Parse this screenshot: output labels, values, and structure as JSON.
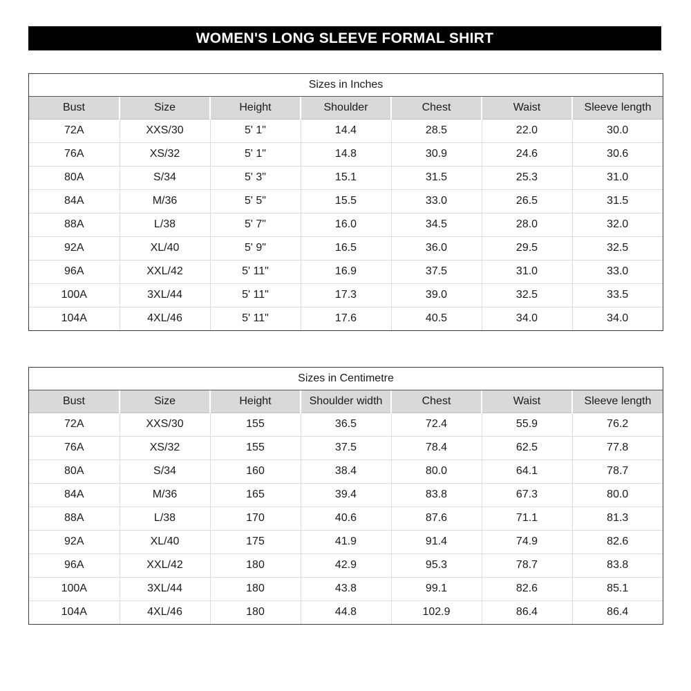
{
  "page_title": "WOMEN'S LONG SLEEVE FORMAL SHIRT",
  "colors": {
    "title_bar_bg": "#000000",
    "title_bar_text": "#ffffff",
    "header_row_bg": "#d9d9d9",
    "table_border": "#3a3a3a",
    "row_divider": "#dcdcdc"
  },
  "tables": [
    {
      "title": "Sizes in Inches",
      "columns": [
        "Bust",
        "Size",
        "Height",
        "Shoulder",
        "Chest",
        "Waist",
        "Sleeve length"
      ],
      "rows": [
        [
          "72A",
          "XXS/30",
          "5' 1\"",
          "14.4",
          "28.5",
          "22.0",
          "30.0"
        ],
        [
          "76A",
          "XS/32",
          "5' 1\"",
          "14.8",
          "30.9",
          "24.6",
          "30.6"
        ],
        [
          "80A",
          "S/34",
          "5' 3\"",
          "15.1",
          "31.5",
          "25.3",
          "31.0"
        ],
        [
          "84A",
          "M/36",
          "5' 5\"",
          "15.5",
          "33.0",
          "26.5",
          "31.5"
        ],
        [
          "88A",
          "L/38",
          "5' 7\"",
          "16.0",
          "34.5",
          "28.0",
          "32.0"
        ],
        [
          "92A",
          "XL/40",
          "5' 9\"",
          "16.5",
          "36.0",
          "29.5",
          "32.5"
        ],
        [
          "96A",
          "XXL/42",
          "5' 11\"",
          "16.9",
          "37.5",
          "31.0",
          "33.0"
        ],
        [
          "100A",
          "3XL/44",
          "5' 11\"",
          "17.3",
          "39.0",
          "32.5",
          "33.5"
        ],
        [
          "104A",
          "4XL/46",
          "5' 11\"",
          "17.6",
          "40.5",
          "34.0",
          "34.0"
        ]
      ]
    },
    {
      "title": "Sizes in Centimetre",
      "columns": [
        "Bust",
        "Size",
        "Height",
        "Shoulder width",
        "Chest",
        "Waist",
        "Sleeve length"
      ],
      "rows": [
        [
          "72A",
          "XXS/30",
          "155",
          "36.5",
          "72.4",
          "55.9",
          "76.2"
        ],
        [
          "76A",
          "XS/32",
          "155",
          "37.5",
          "78.4",
          "62.5",
          "77.8"
        ],
        [
          "80A",
          "S/34",
          "160",
          "38.4",
          "80.0",
          "64.1",
          "78.7"
        ],
        [
          "84A",
          "M/36",
          "165",
          "39.4",
          "83.8",
          "67.3",
          "80.0"
        ],
        [
          "88A",
          "L/38",
          "170",
          "40.6",
          "87.6",
          "71.1",
          "81.3"
        ],
        [
          "92A",
          "XL/40",
          "175",
          "41.9",
          "91.4",
          "74.9",
          "82.6"
        ],
        [
          "96A",
          "XXL/42",
          "180",
          "42.9",
          "95.3",
          "78.7",
          "83.8"
        ],
        [
          "100A",
          "3XL/44",
          "180",
          "43.8",
          "99.1",
          "82.6",
          "85.1"
        ],
        [
          "104A",
          "4XL/46",
          "180",
          "44.8",
          "102.9",
          "86.4",
          "86.4"
        ]
      ]
    }
  ]
}
